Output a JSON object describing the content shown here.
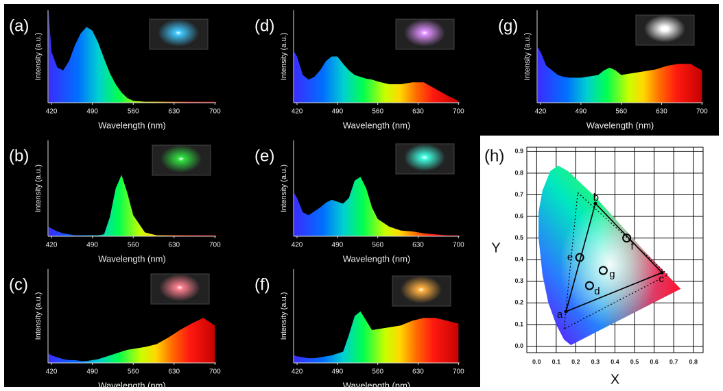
{
  "chart_data": [
    {
      "type": "area",
      "label": "(a)",
      "xlabel": "Wavelength (nm)",
      "ylabel": "Intensity (a.u.)",
      "x": [
        415,
        420,
        430,
        440,
        450,
        460,
        470,
        480,
        490,
        500,
        510,
        520,
        530,
        540,
        550,
        560,
        580,
        600,
        620,
        640,
        660,
        680,
        700
      ],
      "values": [
        1.0,
        0.55,
        0.38,
        0.35,
        0.45,
        0.62,
        0.75,
        0.82,
        0.78,
        0.65,
        0.48,
        0.32,
        0.2,
        0.11,
        0.05,
        0.02,
        0.01,
        0.01,
        0.01,
        0.01,
        0.01,
        0.01,
        0.01
      ],
      "xlim": [
        414,
        702
      ],
      "xticks": [
        420,
        490,
        560,
        630,
        700
      ],
      "ylim": [
        0,
        1
      ]
    },
    {
      "type": "area",
      "label": "(b)",
      "xlabel": "Wavelength (nm)",
      "ylabel": "Intensity (a.u.)",
      "x": [
        415,
        420,
        430,
        440,
        450,
        460,
        470,
        480,
        490,
        500,
        510,
        520,
        530,
        540,
        550,
        560,
        580,
        600,
        620,
        640,
        660,
        680,
        700
      ],
      "values": [
        0.1,
        0.08,
        0.05,
        0.03,
        0.02,
        0.01,
        0.01,
        0.01,
        0.01,
        0.01,
        0.02,
        0.2,
        0.5,
        0.64,
        0.45,
        0.22,
        0.04,
        0.01,
        0.01,
        0.01,
        0.01,
        0.01,
        0.01
      ],
      "xlim": [
        414,
        702
      ],
      "xticks": [
        420,
        490,
        560,
        630,
        700
      ],
      "ylim": [
        0,
        1
      ]
    },
    {
      "type": "area",
      "label": "(c)",
      "xlabel": "Wavelength (nm)",
      "ylabel": "Intensity (a.u.)",
      "x": [
        415,
        420,
        430,
        440,
        450,
        460,
        470,
        480,
        490,
        500,
        510,
        520,
        530,
        540,
        550,
        560,
        580,
        600,
        620,
        640,
        660,
        680,
        700
      ],
      "values": [
        0.1,
        0.08,
        0.06,
        0.04,
        0.03,
        0.03,
        0.02,
        0.02,
        0.03,
        0.04,
        0.06,
        0.08,
        0.1,
        0.12,
        0.14,
        0.15,
        0.17,
        0.2,
        0.27,
        0.35,
        0.42,
        0.48,
        0.4
      ],
      "xlim": [
        414,
        702
      ],
      "xticks": [
        420,
        490,
        560,
        630,
        700
      ],
      "ylim": [
        0,
        1
      ]
    },
    {
      "type": "area",
      "label": "(d)",
      "xlabel": "Wavelength (nm)",
      "ylabel": "Intensity (a.u.)",
      "x": [
        415,
        420,
        430,
        440,
        450,
        460,
        470,
        480,
        490,
        500,
        510,
        520,
        530,
        540,
        550,
        560,
        580,
        600,
        620,
        640,
        660,
        680,
        700
      ],
      "values": [
        0.55,
        0.5,
        0.3,
        0.25,
        0.28,
        0.35,
        0.45,
        0.5,
        0.5,
        0.42,
        0.35,
        0.3,
        0.28,
        0.26,
        0.25,
        0.23,
        0.2,
        0.2,
        0.22,
        0.22,
        0.15,
        0.08,
        0.02
      ],
      "xlim": [
        414,
        702
      ],
      "xticks": [
        420,
        490,
        560,
        630,
        700
      ],
      "ylim": [
        0,
        1
      ]
    },
    {
      "type": "area",
      "label": "(e)",
      "xlabel": "Wavelength (nm)",
      "ylabel": "Intensity (a.u.)",
      "x": [
        415,
        420,
        430,
        440,
        450,
        460,
        470,
        480,
        490,
        500,
        510,
        520,
        530,
        540,
        550,
        560,
        580,
        600,
        620,
        640,
        660,
        680,
        700
      ],
      "values": [
        0.45,
        0.4,
        0.25,
        0.22,
        0.26,
        0.3,
        0.35,
        0.38,
        0.36,
        0.34,
        0.4,
        0.58,
        0.62,
        0.5,
        0.3,
        0.18,
        0.1,
        0.06,
        0.05,
        0.03,
        0.02,
        0.01,
        0.01
      ],
      "xlim": [
        414,
        702
      ],
      "xticks": [
        420,
        490,
        560,
        630,
        700
      ],
      "ylim": [
        0,
        1
      ]
    },
    {
      "type": "area",
      "label": "(f)",
      "xlabel": "Wavelength (nm)",
      "ylabel": "Intensity (a.u.)",
      "x": [
        415,
        420,
        430,
        440,
        450,
        460,
        470,
        480,
        490,
        500,
        510,
        520,
        530,
        540,
        550,
        560,
        580,
        600,
        620,
        640,
        660,
        680,
        700
      ],
      "values": [
        0.08,
        0.07,
        0.06,
        0.05,
        0.05,
        0.06,
        0.07,
        0.08,
        0.1,
        0.12,
        0.3,
        0.5,
        0.55,
        0.45,
        0.35,
        0.36,
        0.38,
        0.4,
        0.45,
        0.48,
        0.48,
        0.45,
        0.42
      ],
      "xlim": [
        414,
        702
      ],
      "xticks": [
        420,
        490,
        560,
        630,
        700
      ],
      "ylim": [
        0,
        1
      ]
    },
    {
      "type": "area",
      "label": "(g)",
      "xlabel": "Wavelength (nm)",
      "ylabel": "Intensity (a.u.)",
      "x": [
        415,
        420,
        430,
        440,
        450,
        460,
        470,
        480,
        490,
        500,
        510,
        520,
        530,
        540,
        550,
        560,
        580,
        600,
        620,
        640,
        660,
        680,
        700
      ],
      "values": [
        0.6,
        0.55,
        0.4,
        0.35,
        0.3,
        0.28,
        0.27,
        0.27,
        0.27,
        0.28,
        0.29,
        0.3,
        0.35,
        0.38,
        0.35,
        0.3,
        0.32,
        0.34,
        0.36,
        0.4,
        0.42,
        0.42,
        0.35
      ],
      "xlim": [
        414,
        702
      ],
      "xticks": [
        420,
        490,
        560,
        630,
        700
      ],
      "ylim": [
        0,
        1
      ]
    },
    {
      "type": "scatter",
      "label": "(h)",
      "xlabel": "X",
      "ylabel": "Y",
      "xlim": [
        -0.05,
        0.85
      ],
      "ylim": [
        -0.03,
        0.92
      ],
      "grid": true,
      "xticks": [
        {
          "value": 0,
          "label": "0.0"
        },
        0.1,
        0.2,
        0.3,
        0.4,
        0.5,
        0.6,
        0.7,
        0.8
      ],
      "yticks": [
        {
          "value": 0,
          "label": "0.0"
        },
        0.1,
        0.2,
        0.3,
        0.4,
        0.5,
        0.6,
        0.7,
        0.8,
        0.9
      ],
      "points": [
        {
          "name": "a",
          "x": 0.15,
          "y": 0.16,
          "marker": "dot"
        },
        {
          "name": "b",
          "x": 0.3,
          "y": 0.66,
          "marker": "dot"
        },
        {
          "name": "c",
          "x": 0.64,
          "y": 0.34,
          "marker": "dot"
        },
        {
          "name": "d",
          "x": 0.27,
          "y": 0.28,
          "marker": "circle"
        },
        {
          "name": "e",
          "x": 0.22,
          "y": 0.41,
          "marker": "circle"
        },
        {
          "name": "f",
          "x": 0.46,
          "y": 0.5,
          "marker": "circle"
        },
        {
          "name": "g",
          "x": 0.34,
          "y": 0.35,
          "marker": "circle"
        }
      ]
    }
  ]
}
